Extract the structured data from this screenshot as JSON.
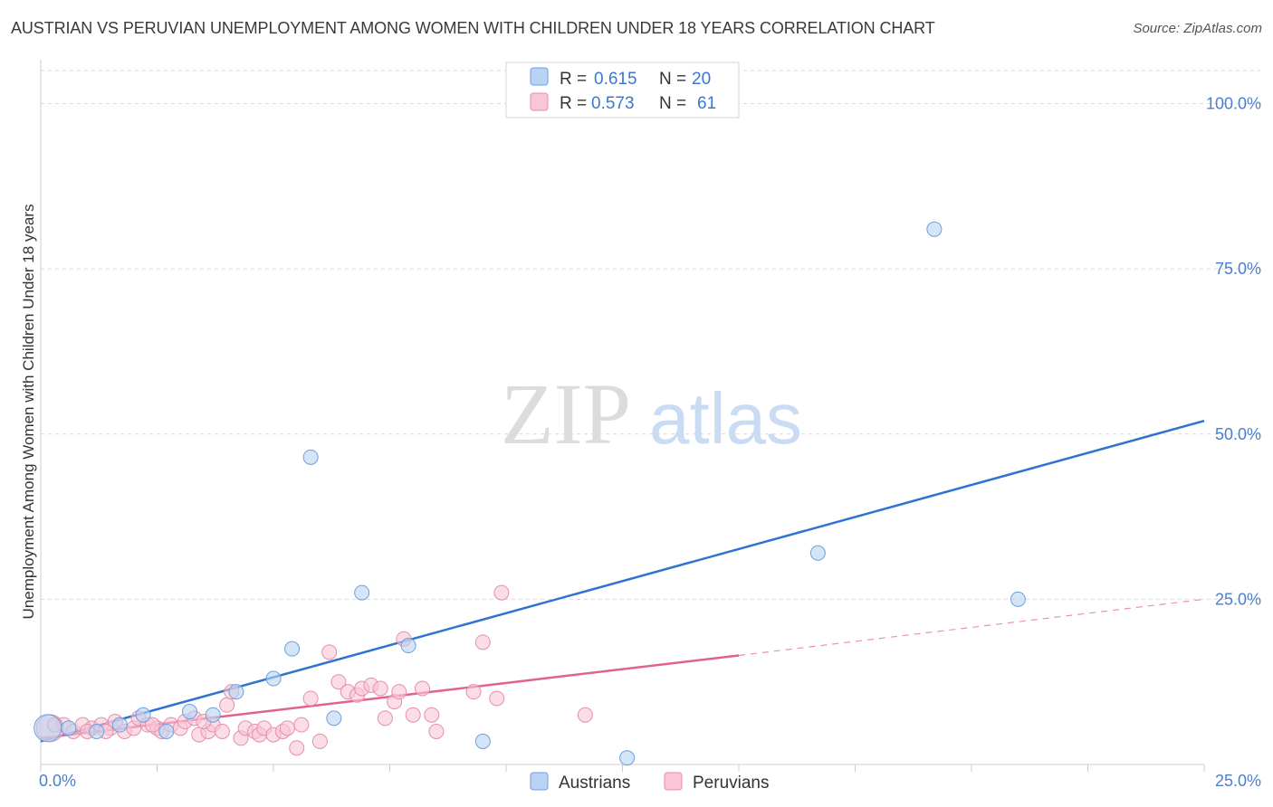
{
  "title": "AUSTRIAN VS PERUVIAN UNEMPLOYMENT AMONG WOMEN WITH CHILDREN UNDER 18 YEARS CORRELATION CHART",
  "source": "Source: ZipAtlas.com",
  "watermark": {
    "zip": "ZIP",
    "atlas": "atlas"
  },
  "colors": {
    "blue_fill": "#b8d3f4",
    "blue_stroke": "#6f9fdc",
    "blue_line": "#2f72d0",
    "pink_fill": "#f8c6d6",
    "pink_stroke": "#e58fab",
    "pink_line": "#e2628f",
    "tick": "#4a7fd0",
    "grid": "#d9d9d9"
  },
  "legend": {
    "rows": [
      {
        "r_label": "R =",
        "r_value": "0.615",
        "n_label": "N =",
        "n_value": "20"
      },
      {
        "r_label": "R =",
        "r_value": "0.573",
        "n_label": "N =",
        "n_value": "61"
      }
    ]
  },
  "chart_data": {
    "type": "scatter",
    "title": "AUSTRIAN VS PERUVIAN UNEMPLOYMENT AMONG WOMEN WITH CHILDREN UNDER 18 YEARS CORRELATION CHART",
    "xlabel": "",
    "ylabel": "Unemployment Among Women with Children Under 18 years",
    "xlim": [
      0,
      25
    ],
    "ylim": [
      0,
      105
    ],
    "x_tick_labels": [
      "0.0%",
      "25.0%"
    ],
    "y_ticks": [
      25,
      50,
      75,
      100
    ],
    "y_tick_labels": [
      "25.0%",
      "50.0%",
      "75.0%",
      "100.0%"
    ],
    "legend_position": "top-center",
    "series": [
      {
        "name": "Austrians",
        "r": 0.615,
        "n": 20,
        "points": [
          {
            "x": 0.15,
            "y": 5.5,
            "big": true
          },
          {
            "x": 1.2,
            "y": 5.0
          },
          {
            "x": 1.7,
            "y": 6.0
          },
          {
            "x": 2.2,
            "y": 7.5
          },
          {
            "x": 2.7,
            "y": 5.0
          },
          {
            "x": 3.2,
            "y": 8.0
          },
          {
            "x": 3.7,
            "y": 7.5
          },
          {
            "x": 4.2,
            "y": 11.0
          },
          {
            "x": 5.0,
            "y": 13.0
          },
          {
            "x": 5.4,
            "y": 17.5
          },
          {
            "x": 5.8,
            "y": 46.5
          },
          {
            "x": 6.3,
            "y": 7.0
          },
          {
            "x": 6.9,
            "y": 26.0
          },
          {
            "x": 7.9,
            "y": 18.0
          },
          {
            "x": 9.5,
            "y": 3.5
          },
          {
            "x": 12.6,
            "y": 1.0
          },
          {
            "x": 16.7,
            "y": 32.0
          },
          {
            "x": 19.2,
            "y": 81.0
          },
          {
            "x": 21.0,
            "y": 25.0
          },
          {
            "x": 0.6,
            "y": 5.5
          }
        ],
        "trend": {
          "x0": 0.0,
          "y0": 3.5,
          "x1": 25.0,
          "y1": 52.0
        }
      },
      {
        "name": "Peruvians",
        "r": 0.573,
        "n": 61,
        "points": [
          {
            "x": 0.2,
            "y": 5.5,
            "big": true
          },
          {
            "x": 0.5,
            "y": 6.0
          },
          {
            "x": 0.7,
            "y": 5.0
          },
          {
            "x": 0.9,
            "y": 6.0
          },
          {
            "x": 1.1,
            "y": 5.5
          },
          {
            "x": 1.3,
            "y": 6.0
          },
          {
            "x": 1.5,
            "y": 5.5
          },
          {
            "x": 1.6,
            "y": 6.5
          },
          {
            "x": 1.8,
            "y": 5.0
          },
          {
            "x": 2.0,
            "y": 5.5
          },
          {
            "x": 2.1,
            "y": 7.0
          },
          {
            "x": 2.3,
            "y": 6.0
          },
          {
            "x": 2.5,
            "y": 5.5
          },
          {
            "x": 2.6,
            "y": 5.0
          },
          {
            "x": 2.8,
            "y": 6.0
          },
          {
            "x": 3.0,
            "y": 5.5
          },
          {
            "x": 3.1,
            "y": 6.5
          },
          {
            "x": 3.3,
            "y": 7.0
          },
          {
            "x": 3.4,
            "y": 4.5
          },
          {
            "x": 3.6,
            "y": 5.0
          },
          {
            "x": 3.7,
            "y": 6.0
          },
          {
            "x": 3.9,
            "y": 5.0
          },
          {
            "x": 4.0,
            "y": 9.0
          },
          {
            "x": 4.1,
            "y": 11.0
          },
          {
            "x": 4.3,
            "y": 4.0
          },
          {
            "x": 4.4,
            "y": 5.5
          },
          {
            "x": 4.6,
            "y": 5.0
          },
          {
            "x": 4.7,
            "y": 4.5
          },
          {
            "x": 4.8,
            "y": 5.5
          },
          {
            "x": 5.0,
            "y": 4.5
          },
          {
            "x": 5.2,
            "y": 5.0
          },
          {
            "x": 5.3,
            "y": 5.5
          },
          {
            "x": 5.5,
            "y": 2.5
          },
          {
            "x": 5.6,
            "y": 6.0
          },
          {
            "x": 5.8,
            "y": 10.0
          },
          {
            "x": 6.0,
            "y": 3.5
          },
          {
            "x": 6.2,
            "y": 17.0
          },
          {
            "x": 6.4,
            "y": 12.5
          },
          {
            "x": 6.6,
            "y": 11.0
          },
          {
            "x": 6.8,
            "y": 10.5
          },
          {
            "x": 6.9,
            "y": 11.5
          },
          {
            "x": 7.1,
            "y": 12.0
          },
          {
            "x": 7.3,
            "y": 11.5
          },
          {
            "x": 7.4,
            "y": 7.0
          },
          {
            "x": 7.6,
            "y": 9.5
          },
          {
            "x": 7.7,
            "y": 11.0
          },
          {
            "x": 7.8,
            "y": 19.0
          },
          {
            "x": 8.0,
            "y": 7.5
          },
          {
            "x": 8.2,
            "y": 11.5
          },
          {
            "x": 8.4,
            "y": 7.5
          },
          {
            "x": 8.5,
            "y": 5.0
          },
          {
            "x": 9.3,
            "y": 11.0
          },
          {
            "x": 9.5,
            "y": 18.5
          },
          {
            "x": 9.8,
            "y": 10.0
          },
          {
            "x": 9.9,
            "y": 26.0
          },
          {
            "x": 11.7,
            "y": 7.5
          },
          {
            "x": 1.4,
            "y": 5.0
          },
          {
            "x": 2.4,
            "y": 6.0
          },
          {
            "x": 3.5,
            "y": 6.5
          },
          {
            "x": 0.3,
            "y": 6.0
          },
          {
            "x": 1.0,
            "y": 5.0
          }
        ],
        "trend": {
          "x0": 0.0,
          "y0": 4.0,
          "x1": 15.0,
          "y1": 16.5
        },
        "trend_dashed": {
          "x0": 15.0,
          "y0": 16.5,
          "x1": 25.0,
          "y1": 25.0
        }
      }
    ]
  },
  "bottom_legend": [
    {
      "label": "Austrians"
    },
    {
      "label": "Peruvians"
    }
  ]
}
